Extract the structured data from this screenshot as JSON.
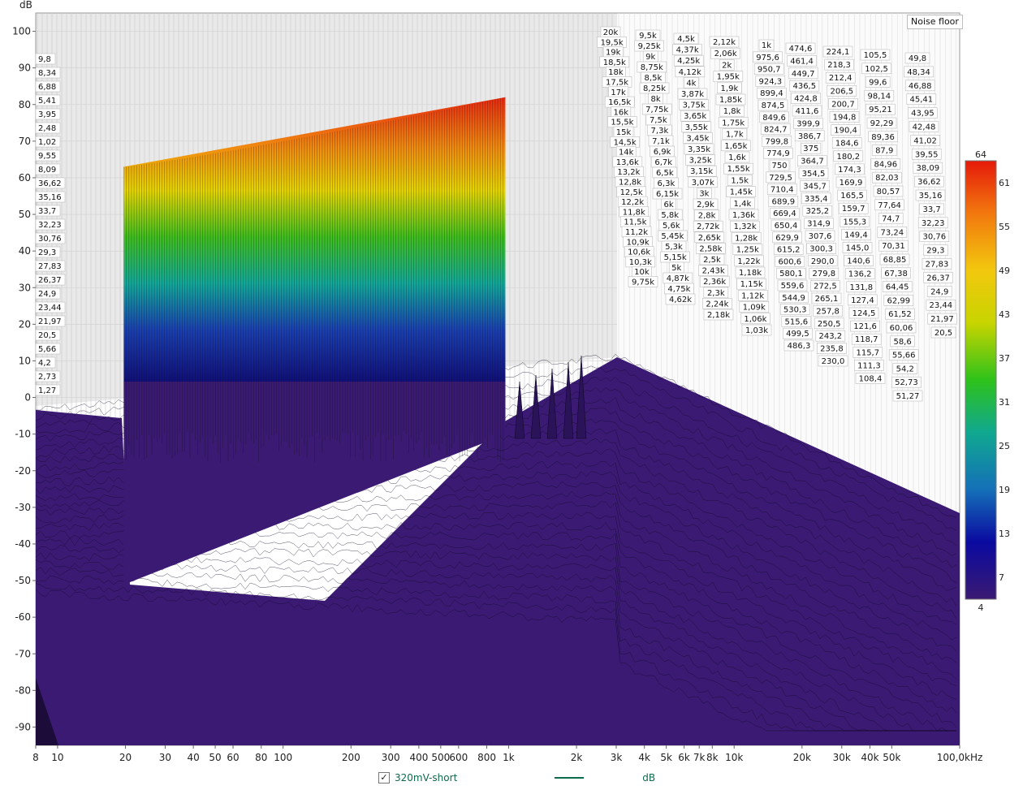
{
  "chart_data": {
    "type": "waterfall",
    "ylabel": "dB",
    "xunit": "kHz",
    "y_ticks": [
      "100",
      "90",
      "80",
      "70",
      "60",
      "50",
      "40",
      "30",
      "20",
      "10",
      "0",
      "-10",
      "-20",
      "-30",
      "-40",
      "-50",
      "-60",
      "-70",
      "-80",
      "-90"
    ],
    "x_ticks": [
      "8",
      "10",
      "20",
      "30",
      "40",
      "50",
      "60",
      "80",
      "100",
      "200",
      "300",
      "400",
      "500",
      "600",
      "800",
      "1k",
      "2k",
      "3k",
      "4k",
      "5k",
      "6k",
      "7k",
      "8k",
      "10k",
      "20k",
      "30k",
      "40k",
      "50k",
      "100,0kHz"
    ],
    "ylim": [
      -95,
      105
    ],
    "xlim_hz": [
      8,
      100000
    ],
    "tone_range_hz": [
      20,
      1000
    ],
    "tone_peak_db": [
      63,
      82
    ],
    "noise_floor_db": -55,
    "colorbar": {
      "ticks": [
        "64",
        "61",
        "55",
        "49",
        "43",
        "37",
        "31",
        "25",
        "19",
        "13",
        "7",
        "4"
      ],
      "range": [
        4,
        64
      ]
    },
    "slice_label_columns": [
      [
        "20k",
        "19,5k",
        "19k",
        "18,5k",
        "18k",
        "17,5k",
        "17k",
        "16,5k",
        "16k",
        "15,5k",
        "15k",
        "14,5k",
        "14k",
        "13,6k",
        "13,2k",
        "12,8k",
        "12,5k",
        "12,2k",
        "11,8k",
        "11,5k",
        "11,2k",
        "10,9k",
        "10,6k",
        "10,3k",
        "10k",
        "9,75k"
      ],
      [
        "9,5k",
        "9,25k",
        "9k",
        "8,75k",
        "8,5k",
        "8,25k",
        "8k",
        "7,75k",
        "7,5k",
        "7,3k",
        "7,1k",
        "6,9k",
        "6,7k",
        "6,5k",
        "6,3k",
        "6,15k",
        "6k",
        "5,8k",
        "5,6k",
        "5,45k",
        "5,3k",
        "5,15k",
        "5k",
        "4,87k",
        "4,75k",
        "4,62k"
      ],
      [
        "4,5k",
        "4,37k",
        "4,25k",
        "4,12k",
        "4k",
        "3,87k",
        "3,75k",
        "3,65k",
        "3,55k",
        "3,45k",
        "3,35k",
        "3,25k",
        "3,15k",
        "3,07k",
        "3k",
        "2,9k",
        "2,8k",
        "2,72k",
        "2,65k",
        "2,58k",
        "2,5k",
        "2,43k",
        "2,36k",
        "2,3k",
        "2,24k",
        "2,18k"
      ],
      [
        "2,12k",
        "2,06k",
        "2k",
        "1,95k",
        "1,9k",
        "1,85k",
        "1,8k",
        "1,75k",
        "1,7k",
        "1,65k",
        "1,6k",
        "1,55k",
        "1,5k",
        "1,45k",
        "1,4k",
        "1,36k",
        "1,32k",
        "1,28k",
        "1,25k",
        "1,22k",
        "1,18k",
        "1,15k",
        "1,12k",
        "1,09k",
        "1,06k",
        "1,03k"
      ],
      [
        "1k",
        "975,6",
        "950,7",
        "924,3",
        "899,4",
        "874,5",
        "849,6",
        "824,7",
        "799,8",
        "774,9",
        "750",
        "729,5",
        "710,4",
        "689,9",
        "669,4",
        "650,4",
        "629,9",
        "615,2",
        "600,6",
        "580,1",
        "559,6",
        "544,9",
        "530,3",
        "515,6",
        "499,5",
        "486,3"
      ],
      [
        "474,6",
        "461,4",
        "449,7",
        "436,5",
        "424,8",
        "411,6",
        "399,9",
        "386,7",
        "375",
        "364,7",
        "354,5",
        "345,7",
        "335,4",
        "325,2",
        "314,9",
        "307,6",
        "300,3",
        "290,0",
        "279,8",
        "272,5",
        "265,1",
        "257,8",
        "250,5",
        "243,2",
        "235,8",
        "230,0"
      ],
      [
        "224,1",
        "218,3",
        "212,4",
        "206,5",
        "200,7",
        "194,8",
        "190,4",
        "184,6",
        "180,2",
        "174,3",
        "169,9",
        "165,5",
        "159,7",
        "155,3",
        "149,4",
        "145,0",
        "140,6",
        "136,2",
        "131,8",
        "127,4",
        "124,5",
        "121,6",
        "118,7",
        "115,7",
        "111,3",
        "108,4"
      ],
      [
        "105,5",
        "102,5",
        "99,6",
        "98,14",
        "95,21",
        "92,29",
        "89,36",
        "87,9",
        "84,96",
        "82,03",
        "80,57",
        "77,64",
        "74,7",
        "73,24",
        "70,31",
        "68,85",
        "67,38",
        "64,45",
        "62,99",
        "61,52",
        "60,06",
        "58,6",
        "55,66",
        "54,2",
        "52,73",
        "51,27"
      ],
      [
        "49,8",
        "48,34",
        "46,88",
        "45,41",
        "43,95",
        "42,48",
        "41,02",
        "39,55",
        "38,09",
        "36,62",
        "35,16",
        "33,7",
        "32,23",
        "30,76",
        "29,3",
        "27,83",
        "26,37",
        "24,9",
        "23,44",
        "21,97",
        "20,5"
      ]
    ],
    "left_edge_labels": [
      "9,8",
      "8,34",
      "6,88",
      "5,41",
      "3,95",
      "2,48",
      "1,02",
      "9,55",
      "8,09",
      "36,62",
      "35,16",
      "33,7",
      "32,23",
      "30,76",
      "29,3",
      "27,83",
      "26,37",
      "24,9",
      "23,44",
      "21,97",
      "20,5",
      "5,66",
      "4,2",
      "2,73",
      "1,27"
    ]
  },
  "noise_floor_label": "Noise floor",
  "legend": {
    "series_name": "320mV-short",
    "unit": "dB",
    "checked": "✓",
    "color": "#0b6b4a"
  },
  "colors": {
    "floor": "#3a1a72",
    "wall": "#e9e9e9",
    "grid": "#c8c8c8"
  }
}
